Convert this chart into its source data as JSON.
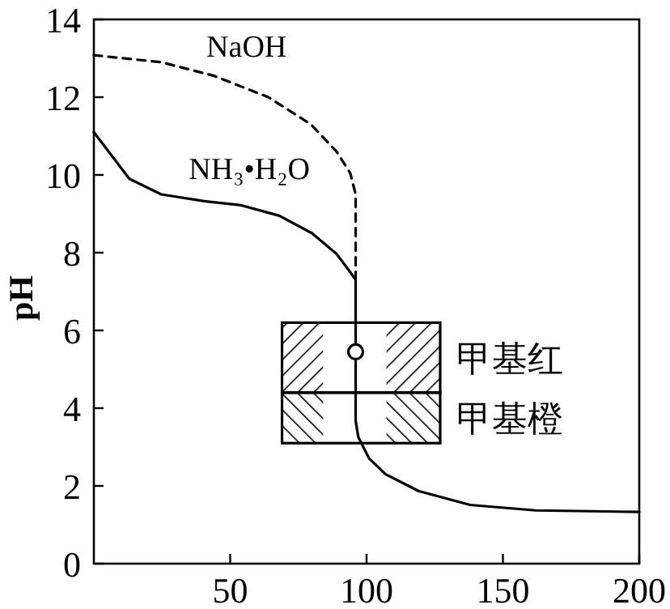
{
  "chart_data": {
    "type": "line",
    "ylabel": "pH",
    "xlim": [
      0,
      200
    ],
    "ylim": [
      0,
      14
    ],
    "xticks": [
      50,
      100,
      150,
      200
    ],
    "yticks": [
      0,
      2,
      4,
      6,
      8,
      10,
      12,
      14
    ],
    "grid": false,
    "legend": false,
    "marker": "none",
    "series": [
      {
        "name": "NaOH",
        "color": "#000000",
        "line_style": "dashed",
        "x": [
          0,
          24.7,
          44,
          64,
          79.6,
          89,
          94,
          96,
          96
        ],
        "values": [
          13.08,
          12.9,
          12.55,
          12.0,
          11.3,
          10.6,
          10.05,
          9.5,
          7.3
        ]
      },
      {
        "name": "NH₃•H₂O",
        "color": "#000000",
        "line_style": "solid",
        "x": [
          0,
          13,
          24.7,
          40,
          54,
          68,
          80,
          89,
          94,
          96,
          96,
          97,
          101,
          107,
          119,
          138,
          162,
          200
        ],
        "values": [
          11.1,
          9.9,
          9.5,
          9.33,
          9.22,
          8.95,
          8.5,
          7.97,
          7.5,
          7.3,
          3.67,
          3.25,
          2.7,
          2.3,
          1.87,
          1.51,
          1.37,
          1.33
        ]
      },
      {
        "type": "scatter",
        "marker": "circle",
        "color": "#000000",
        "x": [
          96
        ],
        "values": [
          5.45
        ]
      }
    ],
    "bands": [
      {
        "axis": "y",
        "from": 4.4,
        "to": 6.2,
        "label": "甲基红",
        "color": "#000000"
      },
      {
        "axis": "y",
        "from": 3.1,
        "to": 4.4,
        "label": "甲基橙",
        "color": "#000000"
      }
    ]
  }
}
